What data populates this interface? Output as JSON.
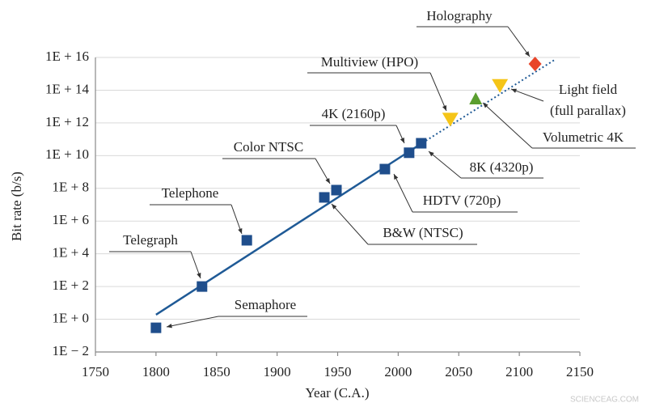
{
  "chart_data": {
    "type": "scatter",
    "x_label": "Year (C.A.)",
    "y_label": "Bit rate (b/s)",
    "watermark": "SCIENCEAG.COM",
    "log_y": true,
    "grid": true,
    "xlim": [
      1750,
      2150
    ],
    "xticks": [
      1750,
      1800,
      1850,
      1900,
      1950,
      2000,
      2050,
      2100,
      2150
    ],
    "ylim": [
      0.01,
      1e+16
    ],
    "yticks": [
      {
        "value": 0.01,
        "label": "1E − 2"
      },
      {
        "value": 1,
        "label": "1E + 0"
      },
      {
        "value": 100,
        "label": "1E + 2"
      },
      {
        "value": 10000,
        "label": "1E + 4"
      },
      {
        "value": 1000000,
        "label": "1E + 6"
      },
      {
        "value": 100000000,
        "label": "1E + 8"
      },
      {
        "value": 10000000000,
        "label": "1E + 10"
      },
      {
        "value": 1000000000000,
        "label": "1E + 12"
      },
      {
        "value": 100000000000000,
        "label": "1E + 14"
      },
      {
        "value": 10000000000000000,
        "label": "1E + 16"
      }
    ],
    "trend": [
      {
        "x": [
          1800,
          2020
        ],
        "values": [
          1.9,
          60000000000
        ],
        "color": "#1f5a96",
        "style": "solid"
      },
      {
        "x": [
          2020,
          2129
        ],
        "values": [
          60000000000,
          7000000000000000
        ],
        "color": "#1f5a96",
        "style": "dotted"
      }
    ],
    "points": [
      {
        "label": "Semaphore",
        "x": 1800,
        "value": 0.3,
        "marker": "square",
        "color": "#1f4e8c"
      },
      {
        "label": "Telegraph",
        "x": 1838,
        "value": 100,
        "marker": "square",
        "color": "#1f4e8c"
      },
      {
        "label": "Telephone",
        "x": 1875,
        "value": 67000,
        "marker": "square",
        "color": "#1f4e8c"
      },
      {
        "label": "B&W (NTSC)",
        "x": 1939,
        "value": 28000000,
        "marker": "square",
        "color": "#1f4e8c"
      },
      {
        "label": "Color NTSC",
        "x": 1949,
        "value": 78000000,
        "marker": "square",
        "color": "#1f4e8c"
      },
      {
        "label": "HDTV (720p)",
        "x": 1989,
        "value": 1500000000,
        "marker": "square",
        "color": "#1f4e8c"
      },
      {
        "label": "4K (2160p)",
        "x": 2009,
        "value": 15000000000,
        "marker": "square",
        "color": "#1f4e8c"
      },
      {
        "label": "8K (4320p)",
        "x": 2019,
        "value": 57000000000,
        "marker": "square",
        "color": "#1f4e8c"
      },
      {
        "label": "Multiview (HPO)",
        "x": 2043,
        "value": 1500000000000,
        "marker": "triangle-down",
        "color": "#f5c518"
      },
      {
        "label": "Volumetric 4K",
        "x": 2064,
        "value": 30000000000000,
        "marker": "triangle-up",
        "color": "#5a9e2f"
      },
      {
        "label": [
          "Light field",
          "(full parallax)"
        ],
        "x": 2084,
        "value": 170000000000000,
        "marker": "triangle-down",
        "color": "#f5c518"
      },
      {
        "label": "Holography",
        "x": 2113,
        "value": 4000000000000000,
        "marker": "diamond",
        "color": "#e8452a"
      }
    ]
  }
}
